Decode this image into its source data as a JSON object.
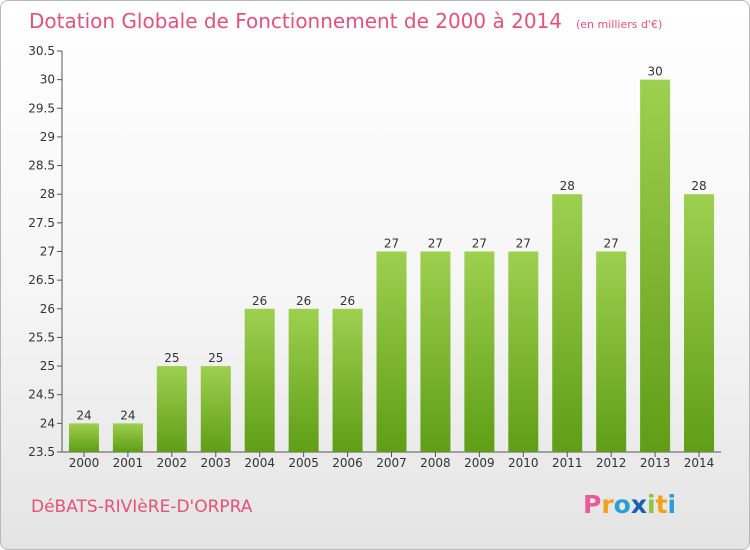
{
  "header": {
    "title": "Dotation Globale de Fonctionnement de 2000 à 2014",
    "unit": "(en milliers d'€)"
  },
  "footer": {
    "commune": "DéBATS-RIVIèRE-D'ORPRA",
    "logo": {
      "letters": [
        "P",
        "r",
        "o",
        "x",
        "i",
        "t",
        "i"
      ],
      "colors": [
        "#e85a9a",
        "#f2a21a",
        "#2a9fd6",
        "#1a5fb0",
        "#8ac640",
        "#f2a21a",
        "#2a9fd6"
      ]
    }
  },
  "chart_data": {
    "type": "bar",
    "categories": [
      "2000",
      "2001",
      "2002",
      "2003",
      "2004",
      "2005",
      "2006",
      "2007",
      "2008",
      "2009",
      "2010",
      "2011",
      "2012",
      "2013",
      "2014"
    ],
    "values": [
      24,
      24,
      25,
      25,
      26,
      26,
      26,
      27,
      27,
      27,
      27,
      28,
      27,
      30,
      28
    ],
    "ylim": [
      23.5,
      30.5
    ],
    "yticks": [
      "23.5",
      "24",
      "24.5",
      "25",
      "25.5",
      "26",
      "26.5",
      "27",
      "27.5",
      "28",
      "28.5",
      "29",
      "29.5",
      "30",
      "30.5"
    ],
    "grid": false,
    "bar_color": "#7dbb2e"
  }
}
